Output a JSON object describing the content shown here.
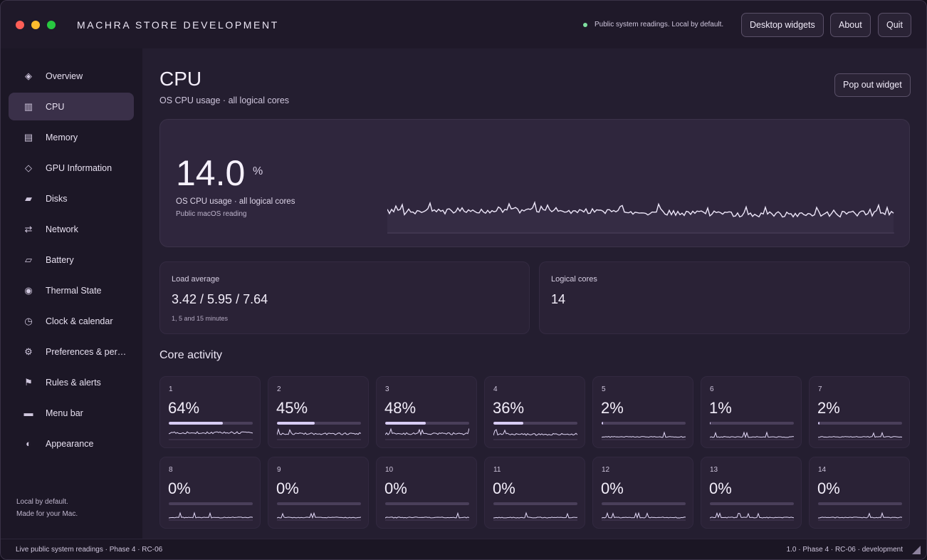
{
  "window": {
    "title": "MACHRA STORE DEVELOPMENT",
    "status": "Public system readings. Local by default.",
    "buttons": [
      "Desktop widgets",
      "About",
      "Quit"
    ]
  },
  "sidebar": {
    "items": [
      {
        "label": "Overview",
        "icon": "diamond-icon",
        "glyph": "◈"
      },
      {
        "label": "CPU",
        "icon": "cpu-icon",
        "glyph": "▥"
      },
      {
        "label": "Memory",
        "icon": "memory-icon",
        "glyph": "▤"
      },
      {
        "label": "GPU Information",
        "icon": "gpu-icon",
        "glyph": "◇"
      },
      {
        "label": "Disks",
        "icon": "disk-icon",
        "glyph": "▰"
      },
      {
        "label": "Network",
        "icon": "arrows-icon",
        "glyph": "⇄"
      },
      {
        "label": "Battery",
        "icon": "battery-icon",
        "glyph": "▱"
      },
      {
        "label": "Thermal State",
        "icon": "thermal-icon",
        "glyph": "◉"
      },
      {
        "label": "Clock & calendar",
        "icon": "clock-icon",
        "glyph": "◷"
      },
      {
        "label": "Preferences & per…",
        "icon": "gear-icon",
        "glyph": "⚙"
      },
      {
        "label": "Rules & alerts",
        "icon": "flag-icon",
        "glyph": "⚑"
      },
      {
        "label": "Menu bar",
        "icon": "menubar-icon",
        "glyph": "▬"
      },
      {
        "label": "Appearance",
        "icon": "appearance-icon",
        "glyph": "◐"
      }
    ],
    "active": "CPU",
    "footer": [
      "Local by default.",
      "Made for your Mac."
    ]
  },
  "main": {
    "title": "CPU",
    "subtitle": "OS CPU usage · all logical cores",
    "popout_label": "Pop out widget",
    "hero": {
      "value": "14.0",
      "unit": "%",
      "label": "OS CPU usage · all logical cores",
      "source": "Public macOS reading"
    },
    "load": {
      "label": "Load average",
      "value": "3.42 / 5.95 / 7.64",
      "note": "1, 5 and 15 minutes"
    },
    "cores_stat": {
      "label": "Logical cores",
      "value": "14"
    },
    "section_title": "Core activity",
    "cores": [
      {
        "num": "1",
        "pct": "64%",
        "fraction": 0.64
      },
      {
        "num": "2",
        "pct": "45%",
        "fraction": 0.45
      },
      {
        "num": "3",
        "pct": "48%",
        "fraction": 0.48
      },
      {
        "num": "4",
        "pct": "36%",
        "fraction": 0.36
      },
      {
        "num": "5",
        "pct": "2%",
        "fraction": 0.02
      },
      {
        "num": "6",
        "pct": "1%",
        "fraction": 0.01
      },
      {
        "num": "7",
        "pct": "2%",
        "fraction": 0.02
      },
      {
        "num": "8",
        "pct": "0%",
        "fraction": 0.0
      },
      {
        "num": "9",
        "pct": "0%",
        "fraction": 0.0
      },
      {
        "num": "10",
        "pct": "0%",
        "fraction": 0.0
      },
      {
        "num": "11",
        "pct": "0%",
        "fraction": 0.0
      },
      {
        "num": "12",
        "pct": "0%",
        "fraction": 0.0
      },
      {
        "num": "13",
        "pct": "0%",
        "fraction": 0.0
      },
      {
        "num": "14",
        "pct": "0%",
        "fraction": 0.0
      }
    ]
  },
  "statusbar": {
    "left": "Live public system readings · Phase 4 · RC-06",
    "right": "1.0 · Phase 4 · RC-06 · development"
  },
  "colors": {
    "accent": "#d8ccf4",
    "status_dot": "#7fe0a0"
  }
}
